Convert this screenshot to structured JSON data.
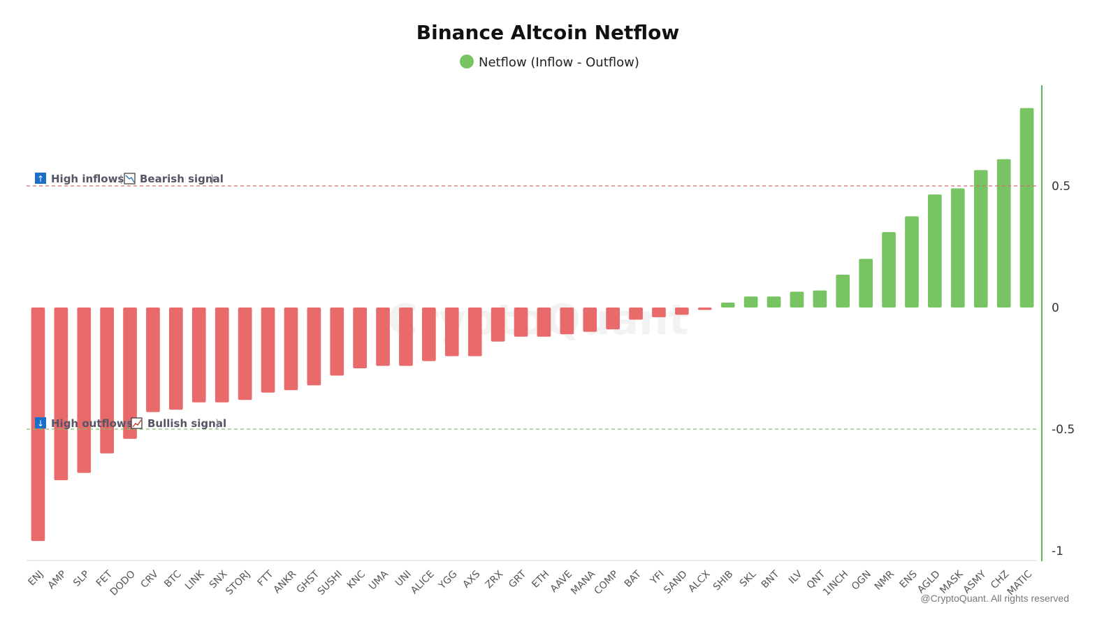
{
  "colors": {
    "negative": "#e86a6a",
    "positive": "#78c462",
    "high_line": "#d96b6b",
    "low_line": "#7cc46a",
    "axis_right": "#5cb85c",
    "annot_box": "#1a6fc9"
  },
  "annotations": {
    "high": {
      "icon": "↑",
      "label": "High inflows",
      "open": "(",
      "signal": "Bearish signal",
      "close": ")"
    },
    "low": {
      "icon": "↓",
      "label": "High outflows",
      "open": "(",
      "signal": "Bullish signal",
      "close": ")"
    }
  },
  "watermark": "CryptoQuant",
  "copyright": "@CryptoQuant. All rights reserved",
  "chart_data": {
    "type": "bar",
    "title": "Binance Altcoin Netflow",
    "legend": {
      "position": "top-center",
      "entries": [
        "Netflow (Inflow - Outflow)"
      ]
    },
    "xlabel": "",
    "ylabel": "",
    "ylim": [
      -1.05,
      0.9
    ],
    "yticks": [
      0.5,
      0,
      -0.5,
      -1
    ],
    "ytick_labels": [
      "0.5",
      "0",
      "-0.5",
      "-1"
    ],
    "reference_lines": [
      0.5,
      -0.5
    ],
    "grid": false,
    "categories": [
      "ENJ",
      "AMP",
      "SLP",
      "FET",
      "DODO",
      "CRV",
      "BTC",
      "LINK",
      "SNX",
      "STORJ",
      "FTT",
      "ANKR",
      "GHST",
      "SUSHI",
      "KNC",
      "UMA",
      "UNI",
      "ALICE",
      "YGG",
      "AXS",
      "ZRX",
      "GRT",
      "ETH",
      "AAVE",
      "MANA",
      "COMP",
      "BAT",
      "YFI",
      "SAND",
      "ALCX",
      "SHIB",
      "SKL",
      "BNT",
      "ILV",
      "QNT",
      "1INCH",
      "OGN",
      "NMR",
      "ENS",
      "AGLD",
      "MASK",
      "ASMY",
      "CHZ",
      "MATIC"
    ],
    "series": [
      {
        "name": "Netflow (Inflow - Outflow)",
        "values": [
          -0.96,
          -0.71,
          -0.68,
          -0.6,
          -0.54,
          -0.43,
          -0.42,
          -0.39,
          -0.39,
          -0.38,
          -0.35,
          -0.34,
          -0.32,
          -0.28,
          -0.25,
          -0.24,
          -0.24,
          -0.22,
          -0.2,
          -0.2,
          -0.14,
          -0.12,
          -0.12,
          -0.11,
          -0.1,
          -0.09,
          -0.05,
          -0.04,
          -0.03,
          -0.01,
          0.02,
          0.045,
          0.045,
          0.065,
          0.07,
          0.135,
          0.2,
          0.31,
          0.375,
          0.465,
          0.49,
          0.565,
          0.61,
          0.82
        ]
      }
    ]
  }
}
